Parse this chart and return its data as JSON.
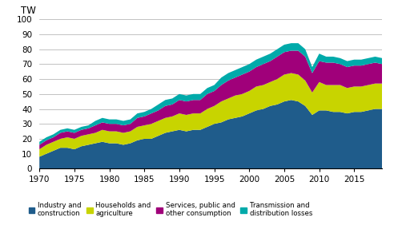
{
  "years": [
    1970,
    1971,
    1972,
    1973,
    1974,
    1975,
    1976,
    1977,
    1978,
    1979,
    1980,
    1981,
    1982,
    1983,
    1984,
    1985,
    1986,
    1987,
    1988,
    1989,
    1990,
    1991,
    1992,
    1993,
    1994,
    1995,
    1996,
    1997,
    1998,
    1999,
    2000,
    2001,
    2002,
    2003,
    2004,
    2005,
    2006,
    2007,
    2008,
    2009,
    2010,
    2011,
    2012,
    2013,
    2014,
    2015,
    2016,
    2017,
    2018,
    2019
  ],
  "industry": [
    8,
    10,
    12,
    14,
    14,
    13,
    15,
    16,
    17,
    18,
    17,
    17,
    16,
    17,
    19,
    20,
    20,
    22,
    24,
    25,
    26,
    25,
    26,
    26,
    28,
    30,
    31,
    33,
    34,
    35,
    37,
    39,
    40,
    42,
    43,
    45,
    46,
    45,
    42,
    36,
    39,
    39,
    38,
    38,
    37,
    38,
    38,
    39,
    40,
    40
  ],
  "households": [
    5,
    6,
    6,
    6,
    7,
    7,
    7,
    7,
    7,
    8,
    8,
    8,
    8,
    8,
    9,
    9,
    10,
    10,
    10,
    10,
    11,
    11,
    11,
    11,
    12,
    12,
    14,
    14,
    15,
    15,
    15,
    16,
    16,
    16,
    17,
    18,
    18,
    18,
    17,
    15,
    19,
    17,
    18,
    18,
    17,
    17,
    17,
    17,
    17,
    17
  ],
  "services": [
    3,
    3,
    3,
    4,
    4,
    4,
    4,
    4,
    5,
    5,
    5,
    5,
    5,
    5,
    6,
    6,
    7,
    7,
    8,
    8,
    9,
    9,
    9,
    9,
    10,
    10,
    11,
    12,
    12,
    13,
    13,
    13,
    14,
    14,
    15,
    15,
    15,
    16,
    16,
    13,
    14,
    15,
    15,
    14,
    14,
    14,
    14,
    14,
    14,
    13
  ],
  "transmission": [
    2,
    2,
    2,
    2,
    2,
    2,
    2,
    2,
    3,
    3,
    3,
    3,
    3,
    3,
    3,
    3,
    3,
    4,
    4,
    4,
    4,
    4,
    4,
    4,
    4,
    4,
    5,
    5,
    5,
    5,
    5,
    5,
    5,
    5,
    5,
    5,
    5,
    5,
    5,
    4,
    5,
    4,
    4,
    4,
    4,
    4,
    4,
    4,
    4,
    4
  ],
  "colors": {
    "industry": "#1F5C8B",
    "households": "#C8D400",
    "services": "#A0007A",
    "transmission": "#00AAAA"
  },
  "ylim": [
    0,
    100
  ],
  "yticks": [
    0,
    10,
    20,
    30,
    40,
    50,
    60,
    70,
    80,
    90,
    100
  ],
  "xticks": [
    1970,
    1975,
    1980,
    1985,
    1990,
    1995,
    2000,
    2005,
    2010,
    2015
  ],
  "ylabel": "TW",
  "legend_labels": [
    "Industry and\nconstruction",
    "Households and\nagriculture",
    "Services, public and\nother consumption",
    "Transmission and\ndistribution losses"
  ]
}
